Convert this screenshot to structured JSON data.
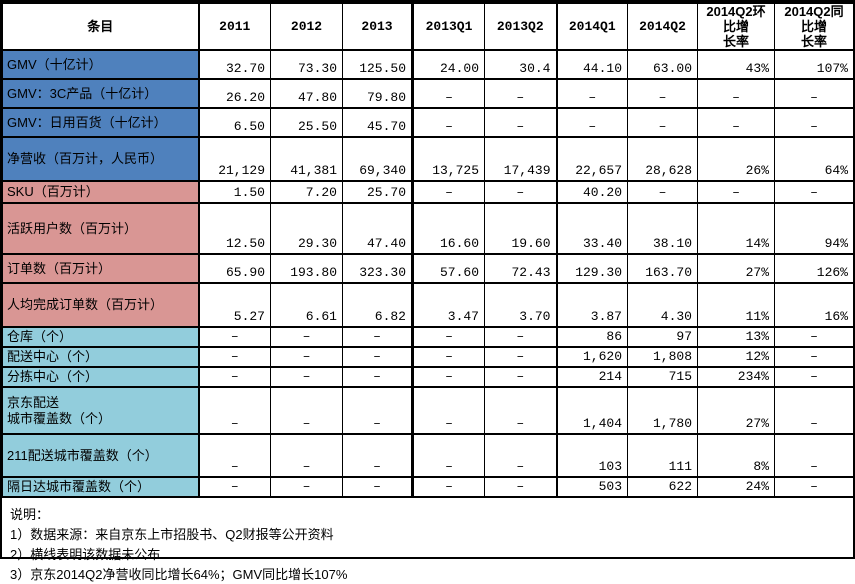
{
  "colors": {
    "group_sales": "#4f81bd",
    "group_users": "#d99694",
    "group_logistics": "#92cddc",
    "border": "#000000",
    "text": "#000000",
    "background": "#ffffff"
  },
  "chart_data": {
    "type": "table",
    "columns": [
      "条目",
      "2011",
      "2012",
      "2013",
      "2013Q1",
      "2013Q2",
      "2014Q1",
      "2014Q2",
      "2014Q2环比增\n长率",
      "2014Q2同比增\n长率"
    ],
    "dash_meaning": "数据未公布",
    "rows": [
      {
        "label": "GMV（十亿计）",
        "group": "sales",
        "values": [
          "32.70",
          "73.30",
          "125.50",
          "24.00",
          "30.4",
          "44.10",
          "63.00",
          "43%",
          "107%"
        ]
      },
      {
        "label": "GMV：3C产品（十亿计）",
        "group": "sales",
        "values": [
          "26.20",
          "47.80",
          "79.80",
          "–",
          "–",
          "–",
          "–",
          "–",
          "–"
        ]
      },
      {
        "label": "GMV：日用百货（十亿计）",
        "group": "sales",
        "values": [
          "6.50",
          "25.50",
          "45.70",
          "–",
          "–",
          "–",
          "–",
          "–",
          "–"
        ]
      },
      {
        "label": "净营收（百万计，人民币）",
        "group": "sales",
        "values": [
          "21,129",
          "41,381",
          "69,340",
          "13,725",
          "17,439",
          "22,657",
          "28,628",
          "26%",
          "64%"
        ]
      },
      {
        "label": "SKU（百万计）",
        "group": "users",
        "values": [
          "1.50",
          "7.20",
          "25.70",
          "–",
          "–",
          "40.20",
          "–",
          "–",
          "–"
        ]
      },
      {
        "label": "活跃用户数（百万计）",
        "group": "users",
        "values": [
          "12.50",
          "29.30",
          "47.40",
          "16.60",
          "19.60",
          "33.40",
          "38.10",
          "14%",
          "94%"
        ]
      },
      {
        "label": "订单数（百万计）",
        "group": "users",
        "values": [
          "65.90",
          "193.80",
          "323.30",
          "57.60",
          "72.43",
          "129.30",
          "163.70",
          "27%",
          "126%"
        ]
      },
      {
        "label": "人均完成订单数（百万计）",
        "group": "users",
        "values": [
          "5.27",
          "6.61",
          "6.82",
          "3.47",
          "3.70",
          "3.87",
          "4.30",
          "11%",
          "16%"
        ]
      },
      {
        "label": "仓库（个）",
        "group": "logistics",
        "values": [
          "–",
          "–",
          "–",
          "–",
          "–",
          "86",
          "97",
          "13%",
          "–"
        ]
      },
      {
        "label": "配送中心（个）",
        "group": "logistics",
        "values": [
          "–",
          "–",
          "–",
          "–",
          "–",
          "1,620",
          "1,808",
          "12%",
          "–"
        ]
      },
      {
        "label": "分拣中心（个）",
        "group": "logistics",
        "values": [
          "–",
          "–",
          "–",
          "–",
          "–",
          "214",
          "715",
          "234%",
          "–"
        ]
      },
      {
        "label": "京东配送\n城市覆盖数（个）",
        "group": "logistics",
        "values": [
          "–",
          "–",
          "–",
          "–",
          "–",
          "1,404",
          "1,780",
          "27%",
          "–"
        ]
      },
      {
        "label": "211配送城市覆盖数（个）",
        "group": "logistics",
        "values": [
          "–",
          "–",
          "–",
          "–",
          "–",
          "103",
          "111",
          "8%",
          "–"
        ]
      },
      {
        "label": "隔日达城市覆盖数（个）",
        "group": "logistics",
        "values": [
          "–",
          "–",
          "–",
          "–",
          "–",
          "503",
          "622",
          "24%",
          "–"
        ]
      }
    ]
  },
  "notes": {
    "title": "说明：",
    "items": [
      "1）数据来源：来自京东上市招股书、Q2财报等公开资料",
      "2）横线表明该数据未公布",
      "3）京东2014Q2净营收同比增长64%；GMV同比增长107%"
    ]
  }
}
